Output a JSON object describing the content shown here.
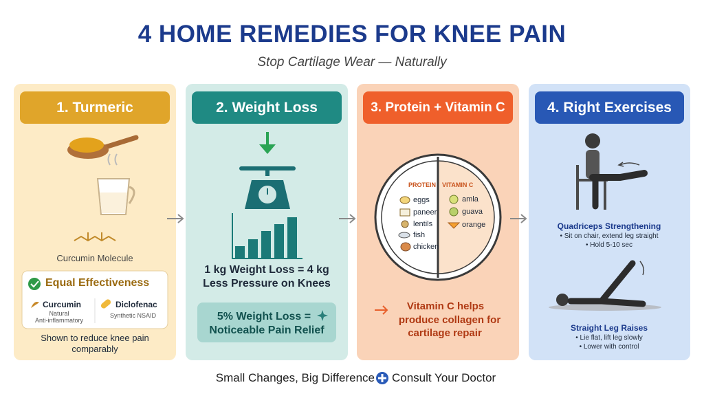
{
  "header": {
    "title": "4 HOME REMEDIES FOR KNEE PAIN",
    "subtitle": "Stop Cartilage Wear — Naturally"
  },
  "cards": [
    {
      "title": "1. Turmeric",
      "molecule_label": "Curcumin Molecule",
      "box": {
        "title": "Equal Effectiveness",
        "items": [
          {
            "name": "Curcumin",
            "desc": [
              "Natural",
              "Anti-inflammatory"
            ]
          },
          {
            "name": "Diclofenac",
            "desc": [
              "Synthetic NSAID"
            ]
          }
        ]
      },
      "note": [
        "Shown to reduce knee pain",
        "comparably"
      ]
    },
    {
      "title": "2. Weight Loss",
      "fact": [
        "1 kg Weight Loss = 4 kg",
        "Less Pressure on Knees"
      ],
      "highlight": [
        "5% Weight Loss =",
        "Noticeable Pain Relief"
      ]
    },
    {
      "title": "3. Protein + Vitamin C",
      "plate": {
        "protein": {
          "label": "PROTEIN",
          "items": [
            "eggs",
            "paneer",
            "lentils",
            "fish",
            "chicken"
          ]
        },
        "vitamin": {
          "label": "VITAMIN C",
          "items": [
            "amla",
            "guava",
            "orange"
          ]
        }
      },
      "note": [
        "Vitamin C helps",
        "produce collagen for",
        "cartilage repair"
      ]
    },
    {
      "title": "4. Right Exercises",
      "exercises": [
        {
          "name": "Quadriceps Strengthening",
          "steps": [
            "• Sit on chair, extend leg straight",
            "• Hold 5-10 sec"
          ]
        },
        {
          "name": "Straight Leg Raises",
          "steps": [
            "• Lie flat, lift leg slowly",
            "• Lower with control"
          ]
        }
      ]
    }
  ],
  "footer": {
    "left": "Small Changes, Big Difference",
    "right": "Consult Your Doctor"
  }
}
